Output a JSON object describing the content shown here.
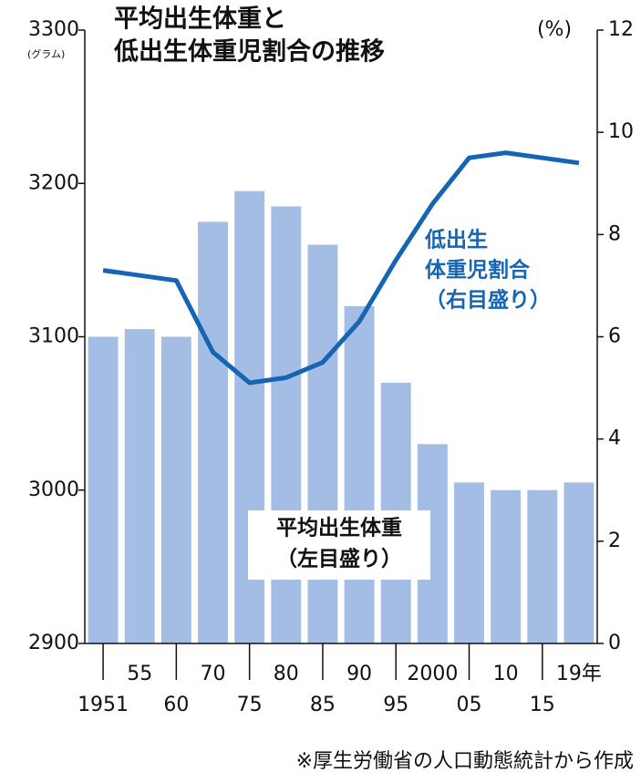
{
  "chart_data": {
    "type": "bar_line",
    "title_lines": [
      "平均出生体重と",
      "低出生体重児割合の推移"
    ],
    "categories": [
      "1951",
      "55",
      "60",
      "70",
      "75",
      "80",
      "85",
      "90",
      "95",
      "2000",
      "05",
      "10",
      "15",
      "19年"
    ],
    "series": [
      {
        "label_lines": [
          "平均出生体重",
          "（左目盛り）"
        ],
        "color": "#a3bde4",
        "axis": "y",
        "kind": "bar",
        "values": [
          3100,
          3105,
          3100,
          3175,
          3195,
          3185,
          3160,
          3120,
          3070,
          3030,
          3005,
          3000,
          3000,
          3005
        ]
      },
      {
        "label_lines": [
          "低出生",
          "体重児割合",
          "（右目盛り）"
        ],
        "color": "#1565b4",
        "axis": "y2",
        "kind": "line",
        "values": [
          7.3,
          7.2,
          7.1,
          5.7,
          5.1,
          5.2,
          5.5,
          6.3,
          7.5,
          8.6,
          9.5,
          9.6,
          9.5,
          9.4
        ]
      }
    ],
    "ylabel": "(グラム)",
    "y2label": "(%)",
    "ylim": [
      2900,
      3300
    ],
    "yticks": [
      2900,
      3000,
      3100,
      3200,
      3300
    ],
    "y2lim": [
      0,
      12
    ],
    "y2ticks": [
      0,
      2,
      4,
      6,
      8,
      10,
      12
    ],
    "source": "※厚生労働省の人口動態統計から作成"
  }
}
